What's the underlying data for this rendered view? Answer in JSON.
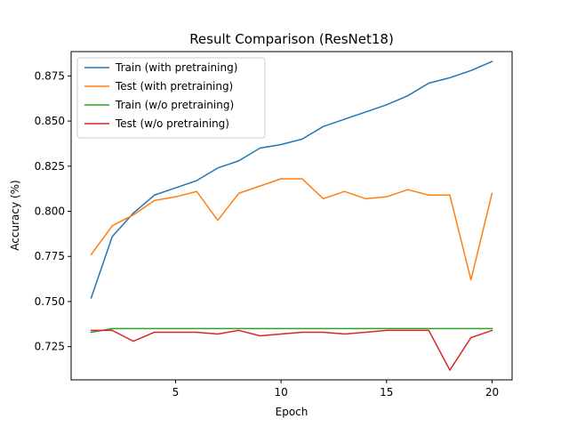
{
  "chart_data": {
    "type": "line",
    "title": "Result Comparison (ResNet18)",
    "xlabel": "Epoch",
    "ylabel": "Accuracy (%)",
    "xlim": [
      0.05,
      20.95
    ],
    "ylim": [
      0.7066,
      0.8885
    ],
    "xticks": [
      5,
      10,
      15,
      20
    ],
    "yticks": [
      0.725,
      0.75,
      0.775,
      0.8,
      0.825,
      0.85,
      0.875
    ],
    "grid": false,
    "legend_position": "upper-left",
    "x": [
      1,
      2,
      3,
      4,
      5,
      6,
      7,
      8,
      9,
      10,
      11,
      12,
      13,
      14,
      15,
      16,
      17,
      18,
      19,
      20
    ],
    "series": [
      {
        "name": "Train (with pretraining)",
        "color": "#1f77b4",
        "values": [
          0.752,
          0.786,
          0.799,
          0.809,
          0.813,
          0.817,
          0.824,
          0.828,
          0.835,
          0.837,
          0.84,
          0.847,
          0.851,
          0.855,
          0.859,
          0.864,
          0.871,
          0.874,
          0.878,
          0.883
        ]
      },
      {
        "name": "Test (with pretraining)",
        "color": "#ff7f0e",
        "values": [
          0.776,
          0.792,
          0.798,
          0.806,
          0.808,
          0.811,
          0.795,
          0.81,
          0.814,
          0.818,
          0.818,
          0.807,
          0.811,
          0.807,
          0.808,
          0.812,
          0.809,
          0.809,
          0.762,
          0.81
        ]
      },
      {
        "name": "Train (w/o pretraining)",
        "color": "#2ca02c",
        "values": [
          0.733,
          0.735,
          0.735,
          0.735,
          0.735,
          0.735,
          0.735,
          0.735,
          0.735,
          0.735,
          0.735,
          0.735,
          0.735,
          0.735,
          0.735,
          0.735,
          0.735,
          0.735,
          0.735,
          0.735
        ]
      },
      {
        "name": "Test (w/o pretraining)",
        "color": "#d62728",
        "values": [
          0.734,
          0.734,
          0.728,
          0.733,
          0.733,
          0.733,
          0.732,
          0.734,
          0.731,
          0.732,
          0.733,
          0.733,
          0.732,
          0.733,
          0.734,
          0.734,
          0.734,
          0.712,
          0.73,
          0.734
        ]
      }
    ]
  }
}
